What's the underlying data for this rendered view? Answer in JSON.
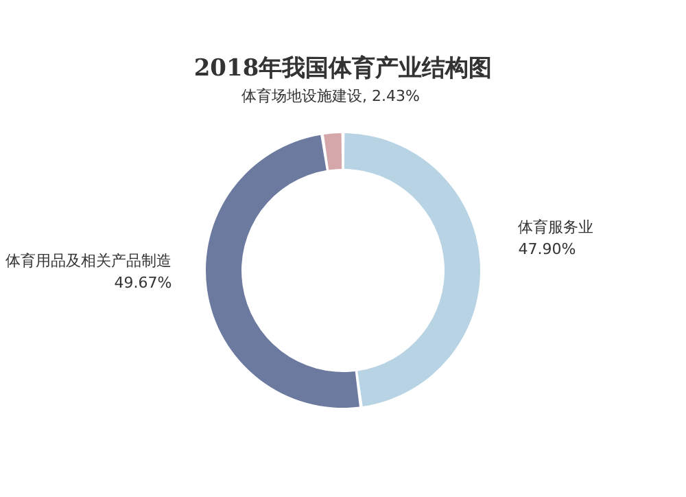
{
  "chart_data": {
    "type": "donut",
    "title": "2018年我国体育产业结构图",
    "categories": [
      "体育服务业",
      "体育用品及相关产品制造",
      "体育场地设施建设"
    ],
    "values": [
      47.9,
      49.67,
      2.43
    ],
    "value_labels": [
      "47.90%",
      "49.67%",
      "2.43%"
    ],
    "colors": [
      "#b8d4e4",
      "#6c7aa0",
      "#d6a7aa"
    ]
  }
}
